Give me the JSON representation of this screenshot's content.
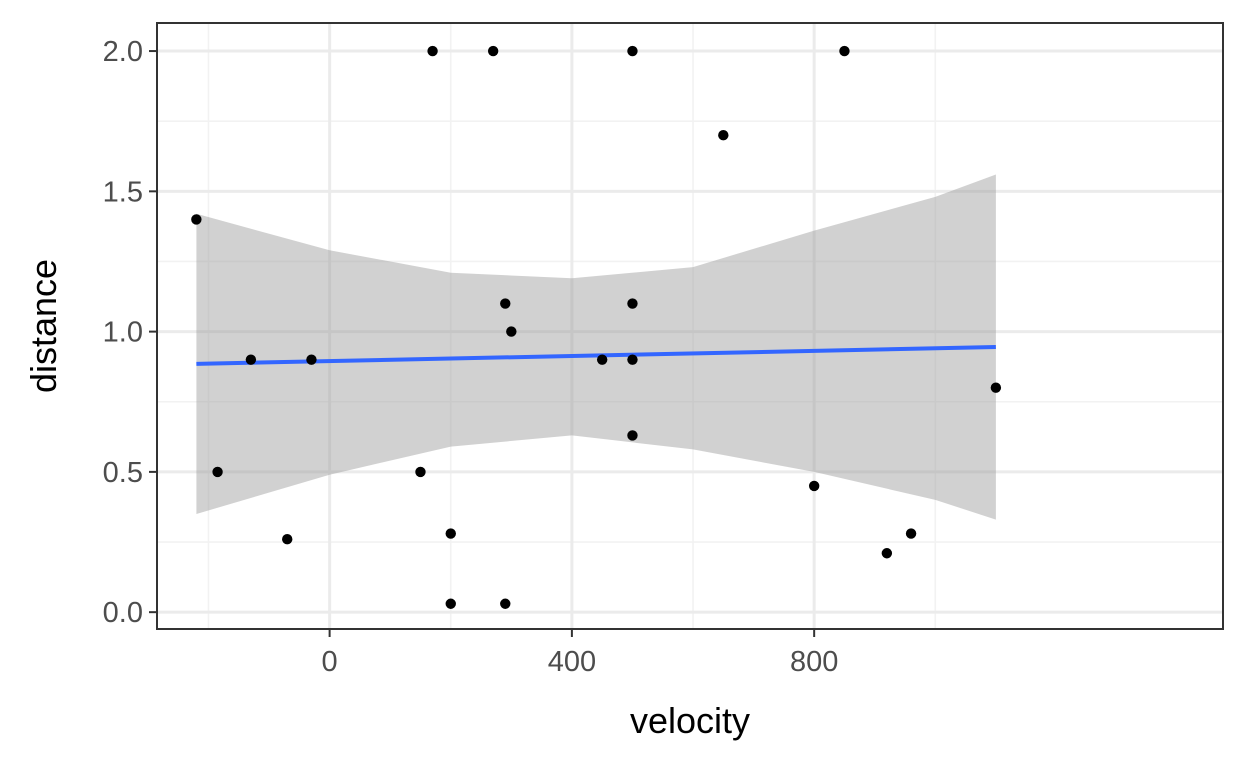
{
  "chart_data": {
    "type": "scatter",
    "title": "",
    "xlabel": "velocity",
    "ylabel": "distance",
    "xlim": [
      -285,
      1475
    ],
    "ylim": [
      -0.06,
      2.1
    ],
    "x_ticks": [
      0,
      400,
      800
    ],
    "x_tick_labels": [
      "0",
      "400",
      "800"
    ],
    "y_ticks": [
      0.0,
      0.5,
      1.0,
      1.5,
      2.0
    ],
    "y_tick_labels": [
      "0.0",
      "0.5",
      "1.0",
      "1.5",
      "2.0"
    ],
    "x_minor_gridlines": [
      -200,
      200,
      600,
      1000
    ],
    "y_minor_gridlines": [
      0.25,
      0.75,
      1.25,
      1.75
    ],
    "grid": true,
    "theme": "bw",
    "points": [
      {
        "x": -220,
        "y": 1.4
      },
      {
        "x": -185,
        "y": 0.5
      },
      {
        "x": -130,
        "y": 0.9
      },
      {
        "x": -70,
        "y": 0.26
      },
      {
        "x": -30,
        "y": 0.9
      },
      {
        "x": 150,
        "y": 0.5
      },
      {
        "x": 170,
        "y": 2.0
      },
      {
        "x": 200,
        "y": 0.28
      },
      {
        "x": 200,
        "y": 0.03
      },
      {
        "x": 270,
        "y": 2.0
      },
      {
        "x": 290,
        "y": 1.1
      },
      {
        "x": 290,
        "y": 0.03
      },
      {
        "x": 300,
        "y": 1.0
      },
      {
        "x": 450,
        "y": 0.9
      },
      {
        "x": 500,
        "y": 2.0
      },
      {
        "x": 500,
        "y": 1.1
      },
      {
        "x": 500,
        "y": 0.9
      },
      {
        "x": 500,
        "y": 0.63
      },
      {
        "x": 650,
        "y": 1.7
      },
      {
        "x": 800,
        "y": 0.45
      },
      {
        "x": 850,
        "y": 2.0
      },
      {
        "x": 920,
        "y": 0.21
      },
      {
        "x": 960,
        "y": 0.28
      },
      {
        "x": 1100,
        "y": 0.8
      }
    ],
    "fit_line": {
      "method": "lm",
      "x": [
        -220,
        1100
      ],
      "y": [
        0.885,
        0.945
      ],
      "color": "#3366FF"
    },
    "confidence_band": {
      "x": [
        -220,
        0,
        200,
        400,
        600,
        800,
        1000,
        1100
      ],
      "lower": [
        0.35,
        0.49,
        0.59,
        0.63,
        0.58,
        0.5,
        0.4,
        0.33
      ],
      "upper": [
        1.42,
        1.29,
        1.21,
        1.19,
        1.23,
        1.36,
        1.48,
        1.56
      ],
      "color": "#999999"
    },
    "colors": {
      "points": "#000000",
      "panel_border": "#333333",
      "major_grid": "#ebebeb",
      "minor_grid": "#f2f2f2"
    }
  }
}
